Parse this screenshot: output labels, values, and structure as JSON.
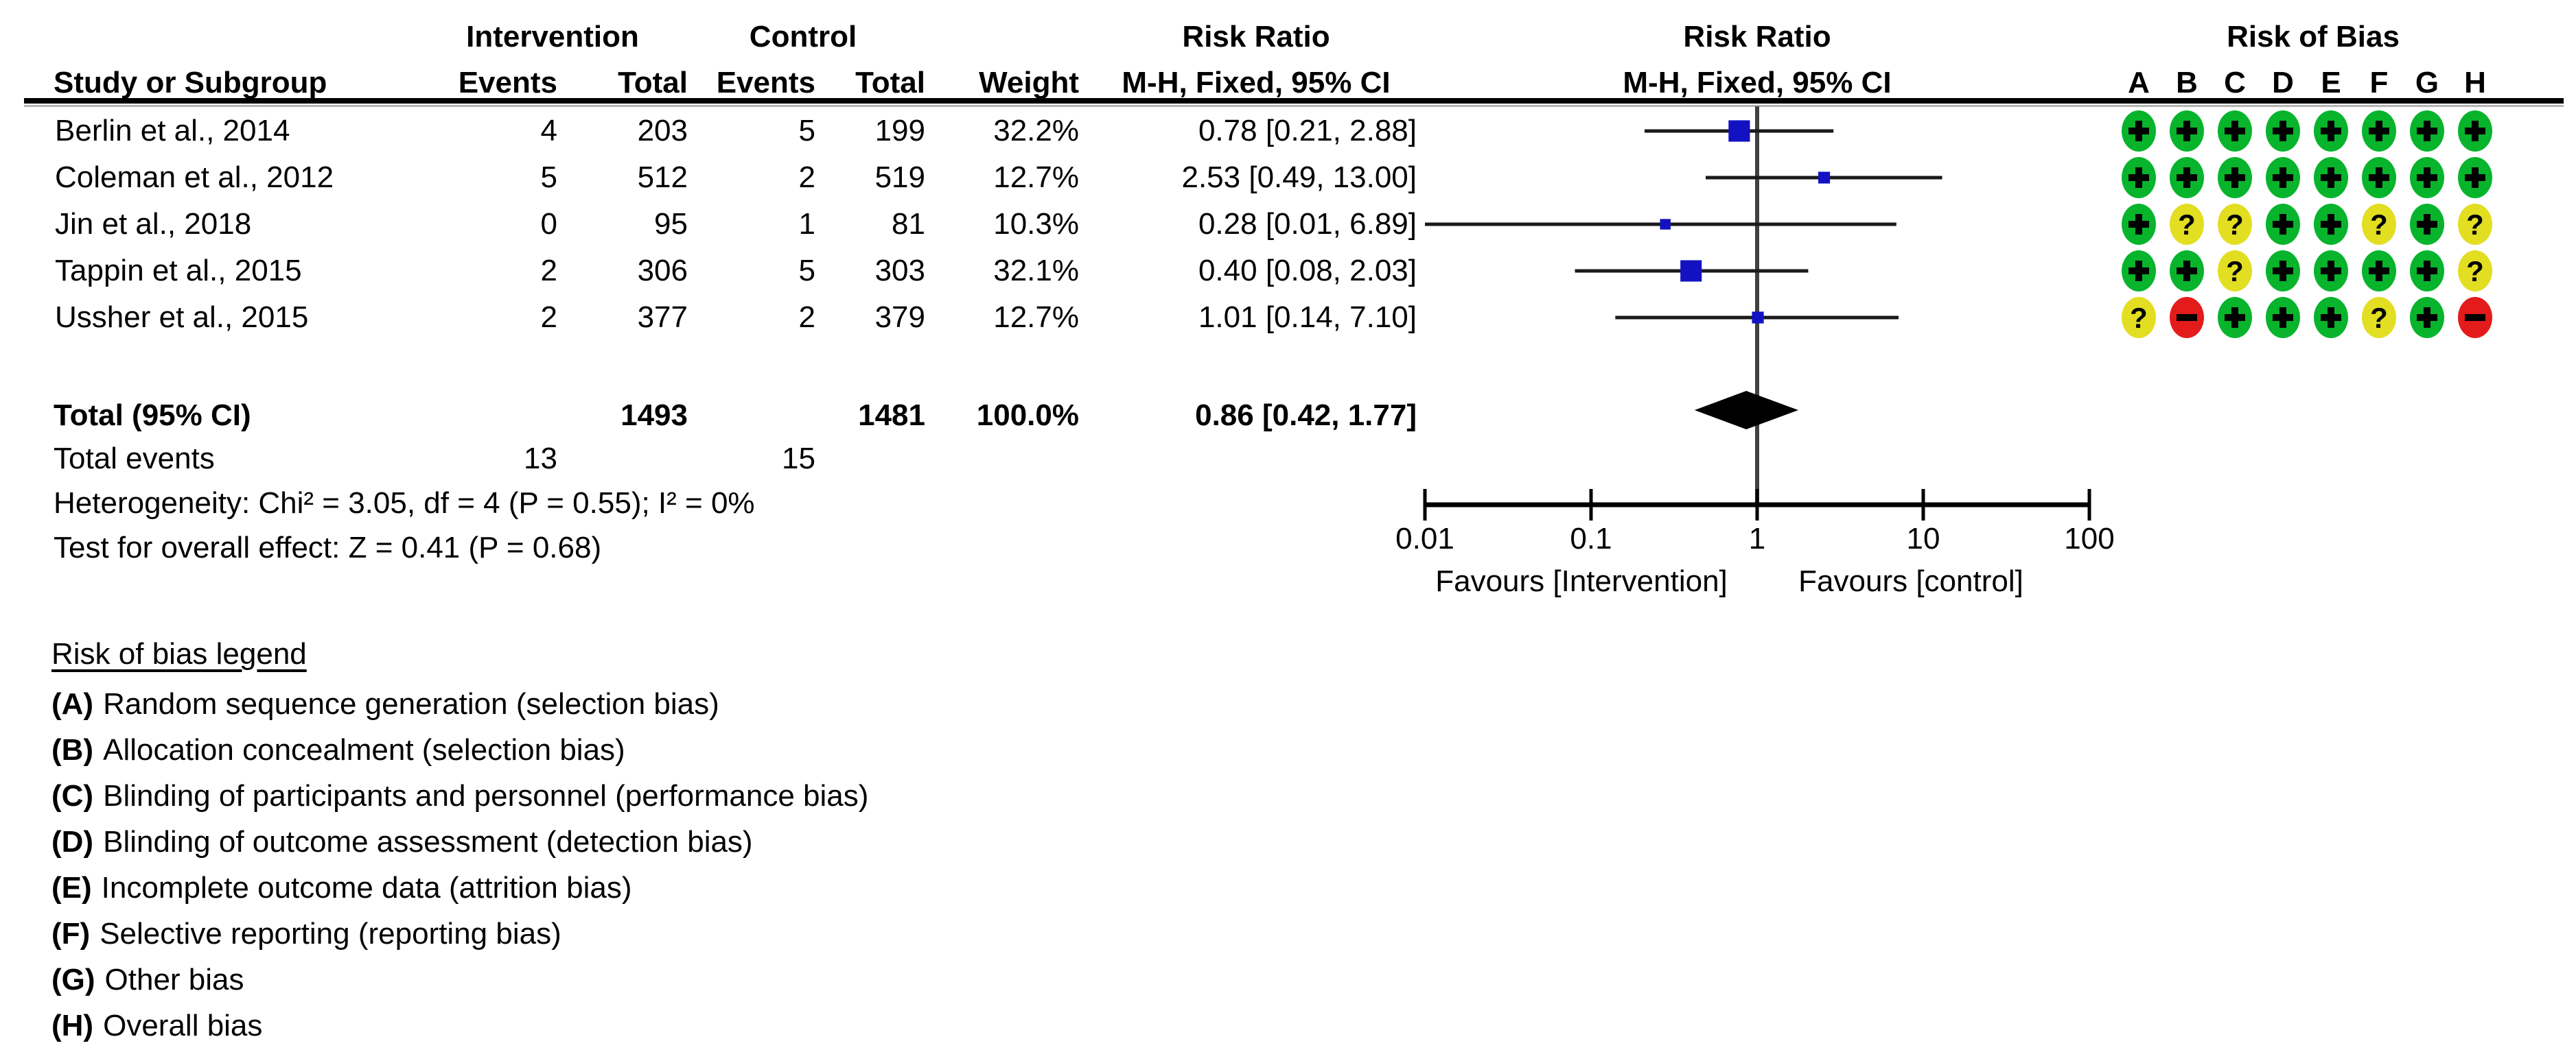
{
  "header": {
    "col_study": "Study or Subgroup",
    "group_intervention": "Intervention",
    "group_control": "Control",
    "col_events_int": "Events",
    "col_total_int": "Total",
    "col_events_ctrl": "Events",
    "col_total_ctrl": "Total",
    "col_weight": "Weight",
    "rr_title_text": "Risk Ratio",
    "rr_subtitle_text": "M-H, Fixed, 95% CI",
    "rr_title_plot": "Risk Ratio",
    "rr_subtitle_plot": "M-H, Fixed, 95% CI",
    "rob_title": "Risk of Bias",
    "rob_letters": [
      "A",
      "B",
      "C",
      "D",
      "E",
      "F",
      "G",
      "H"
    ]
  },
  "chart_data": {
    "type": "forest",
    "effect_measure": "Risk Ratio M-H, Fixed, 95% CI",
    "x_scale": "log10",
    "xlim": [
      0.01,
      100
    ],
    "axis_ticks": [
      "0.01",
      "0.1",
      "1",
      "10",
      "100"
    ],
    "axis_tick_values": [
      0.01,
      0.1,
      1,
      10,
      100
    ],
    "favours_left": "Favours [Intervention]",
    "favours_right": "Favours [control]",
    "studies": [
      {
        "label": "Berlin et al., 2014",
        "events_int": "4",
        "total_int": "203",
        "events_ctrl": "5",
        "total_ctrl": "199",
        "weight": "32.2%",
        "weight_pct": 32.2,
        "rr": 0.78,
        "ci_low": 0.21,
        "ci_high": 2.88,
        "rr_text": "0.78 [0.21, 2.88]",
        "risk_of_bias": [
          "+",
          "+",
          "+",
          "+",
          "+",
          "+",
          "+",
          "+"
        ]
      },
      {
        "label": "Coleman et al., 2012",
        "events_int": "5",
        "total_int": "512",
        "events_ctrl": "2",
        "total_ctrl": "519",
        "weight": "12.7%",
        "weight_pct": 12.7,
        "rr": 2.53,
        "ci_low": 0.49,
        "ci_high": 13.0,
        "rr_text": "2.53 [0.49, 13.00]",
        "risk_of_bias": [
          "+",
          "+",
          "+",
          "+",
          "+",
          "+",
          "+",
          "+"
        ]
      },
      {
        "label": "Jin et al., 2018",
        "events_int": "0",
        "total_int": "95",
        "events_ctrl": "1",
        "total_ctrl": "81",
        "weight": "10.3%",
        "weight_pct": 10.3,
        "rr": 0.28,
        "ci_low": 0.01,
        "ci_high": 6.89,
        "rr_text": "0.28 [0.01, 6.89]",
        "risk_of_bias": [
          "+",
          "?",
          "?",
          "+",
          "+",
          "?",
          "+",
          "?"
        ]
      },
      {
        "label": "Tappin et al., 2015",
        "events_int": "2",
        "total_int": "306",
        "events_ctrl": "5",
        "total_ctrl": "303",
        "weight": "32.1%",
        "weight_pct": 32.1,
        "rr": 0.4,
        "ci_low": 0.08,
        "ci_high": 2.03,
        "rr_text": "0.40 [0.08, 2.03]",
        "risk_of_bias": [
          "+",
          "+",
          "?",
          "+",
          "+",
          "+",
          "+",
          "?"
        ]
      },
      {
        "label": "Ussher et al., 2015",
        "events_int": "2",
        "total_int": "377",
        "events_ctrl": "2",
        "total_ctrl": "379",
        "weight": "12.7%",
        "weight_pct": 12.7,
        "rr": 1.01,
        "ci_low": 0.14,
        "ci_high": 7.1,
        "rr_text": "1.01 [0.14, 7.10]",
        "risk_of_bias": [
          "?",
          "-",
          "+",
          "+",
          "+",
          "?",
          "+",
          "-"
        ]
      }
    ],
    "total": {
      "label": "Total (95% CI)",
      "total_int": "1493",
      "total_ctrl": "1481",
      "weight": "100.0%",
      "rr": 0.86,
      "ci_low": 0.42,
      "ci_high": 1.77,
      "rr_text": "0.86 [0.42, 1.77]"
    },
    "total_events": {
      "label": "Total events",
      "events_int": "13",
      "events_ctrl": "15"
    },
    "heterogeneity": "Heterogeneity: Chi² = 3.05, df = 4 (P = 0.55); I² = 0%",
    "overall_effect": "Test for overall effect: Z = 0.41 (P = 0.68)"
  },
  "rob_symbol_colors": {
    "+": "#07b42c",
    "?": "#e2de22",
    "-": "#e41b1b"
  },
  "plot_colors": {
    "square": "#1212c2",
    "diamond": "#000000",
    "ci_line": "#1a1a1a",
    "axis": "#000000",
    "center_line": "#404040"
  },
  "legend": {
    "title": "Risk of bias legend",
    "items": [
      {
        "key": "(A)",
        "text": "Random sequence generation (selection bias)"
      },
      {
        "key": "(B)",
        "text": "Allocation concealment (selection bias)"
      },
      {
        "key": "(C)",
        "text": "Blinding of participants and personnel (performance bias)"
      },
      {
        "key": "(D)",
        "text": "Blinding of outcome assessment (detection bias)"
      },
      {
        "key": "(E)",
        "text": "Incomplete outcome data (attrition bias)"
      },
      {
        "key": "(F)",
        "text": "Selective reporting (reporting bias)"
      },
      {
        "key": "(G)",
        "text": "Other bias"
      },
      {
        "key": "(H)",
        "text": "Overall bias"
      }
    ]
  }
}
